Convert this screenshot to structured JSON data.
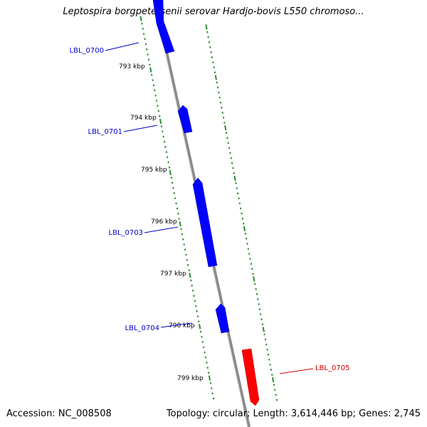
{
  "title": "Leptospira borgpetersenii serovar Hardjo-bovis L550 chromoso...",
  "footer": {
    "accession": "Accession: NC_008508",
    "summary": "Topology: circular; Length: 3,614,446 bp; Genes: 2,745"
  },
  "colors": {
    "forward_gene": "#0000ff",
    "reverse_gene": "#ff0000",
    "backbone": "#888888",
    "tick": "#2e8b2e",
    "label_text": "#000000"
  },
  "scale_labels": [
    "793 kbp",
    "794 kbp",
    "795 kbp",
    "796 kbp",
    "797 kbp",
    "798 kbp",
    "799 kbp"
  ],
  "genes": [
    {
      "name": "LBL_0700",
      "strand": "forward"
    },
    {
      "name": "LBL_0701",
      "strand": "forward"
    },
    {
      "name": "LBL_0703",
      "strand": "forward"
    },
    {
      "name": "LBL_0704",
      "strand": "forward"
    },
    {
      "name": "LBL_0705",
      "strand": "reverse"
    }
  ]
}
